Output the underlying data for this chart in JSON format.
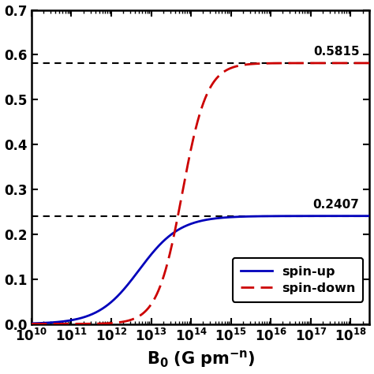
{
  "xlim": [
    10000000000.0,
    3e+18
  ],
  "ylim": [
    0,
    0.7
  ],
  "yticks": [
    0.0,
    0.1,
    0.2,
    0.3,
    0.4,
    0.5,
    0.6,
    0.7
  ],
  "hline1_y": 0.5815,
  "hline2_y": 0.2407,
  "hline1_label": "0.5815",
  "hline2_label": "0.2407",
  "spin_up_asymptote": 0.2407,
  "spin_down_asymptote": 0.5815,
  "spin_up_color": "#0000bb",
  "spin_down_color": "#cc0000",
  "legend_spin_up": "spin-up",
  "legend_spin_down": "spin-down",
  "spin_up_midpoint": 5000000000000.0,
  "spin_up_slope": 0.85,
  "spin_down_midpoint": 60000000000000.0,
  "spin_down_slope": 1.4,
  "background_color": "#ffffff"
}
